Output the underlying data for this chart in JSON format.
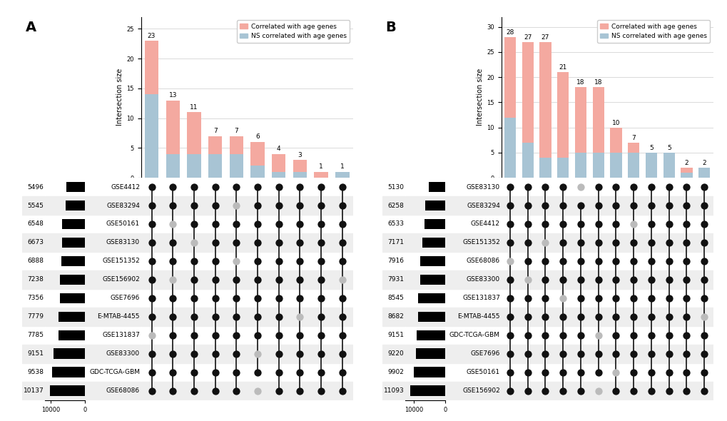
{
  "panel_A": {
    "datasets": [
      "GSE4412",
      "GSE83294",
      "GSE50161",
      "GSE83130",
      "GSE151352",
      "GSE156902",
      "GSE7696",
      "E-MTAB-4455",
      "GSE131837",
      "GSE83300",
      "GDC-TCGA-GBM",
      "GSE68086"
    ],
    "set_sizes": [
      5496,
      5545,
      6548,
      6673,
      6888,
      7238,
      7356,
      7779,
      7785,
      9151,
      9538,
      10137
    ],
    "intersection_totals": [
      23,
      13,
      11,
      7,
      7,
      6,
      4,
      3,
      1,
      1
    ],
    "intersection_sig": [
      9,
      9,
      7,
      3,
      3,
      4,
      3,
      2,
      1,
      0
    ],
    "intersection_ns": [
      14,
      4,
      4,
      4,
      4,
      2,
      1,
      1,
      0,
      1
    ],
    "dot_matrix": [
      [
        1,
        1,
        1,
        1,
        1,
        1,
        1,
        1,
        1,
        1
      ],
      [
        1,
        1,
        1,
        1,
        0,
        1,
        1,
        1,
        1,
        1
      ],
      [
        1,
        0,
        1,
        1,
        1,
        1,
        1,
        1,
        1,
        1
      ],
      [
        1,
        1,
        0,
        1,
        1,
        1,
        1,
        1,
        1,
        1
      ],
      [
        1,
        1,
        1,
        1,
        0,
        1,
        1,
        1,
        1,
        1
      ],
      [
        1,
        0,
        1,
        1,
        1,
        1,
        1,
        1,
        1,
        0
      ],
      [
        1,
        1,
        1,
        1,
        1,
        1,
        1,
        1,
        1,
        1
      ],
      [
        1,
        1,
        1,
        1,
        1,
        1,
        1,
        0,
        1,
        1
      ],
      [
        0,
        1,
        1,
        1,
        1,
        1,
        1,
        1,
        1,
        1
      ],
      [
        1,
        1,
        1,
        1,
        1,
        0,
        1,
        1,
        1,
        1
      ],
      [
        1,
        1,
        1,
        1,
        1,
        1,
        1,
        1,
        1,
        1
      ],
      [
        1,
        1,
        1,
        1,
        1,
        0,
        1,
        1,
        1,
        1
      ]
    ]
  },
  "panel_B": {
    "datasets": [
      "GSE83130",
      "GSE83294",
      "GSE4412",
      "GSE151352",
      "GSE68086",
      "GSE83300",
      "GSE131837",
      "E-MTAB-4455",
      "GDC-TCGA-GBM",
      "GSE7696",
      "GSE50161",
      "GSE156902"
    ],
    "set_sizes": [
      5130,
      6258,
      6533,
      7171,
      7916,
      7931,
      8545,
      8682,
      9151,
      9220,
      9902,
      11093
    ],
    "intersection_totals": [
      28,
      27,
      27,
      21,
      18,
      18,
      10,
      7,
      5,
      5,
      2,
      2
    ],
    "intersection_sig": [
      16,
      20,
      23,
      17,
      13,
      13,
      5,
      2,
      0,
      0,
      1,
      0
    ],
    "intersection_ns": [
      12,
      7,
      4,
      4,
      5,
      5,
      5,
      5,
      5,
      5,
      1,
      2
    ],
    "dot_matrix": [
      [
        1,
        1,
        1,
        1,
        0,
        1,
        1,
        1,
        1,
        1,
        1,
        1
      ],
      [
        1,
        1,
        1,
        1,
        1,
        1,
        1,
        1,
        1,
        1,
        1,
        1
      ],
      [
        1,
        1,
        1,
        1,
        1,
        1,
        1,
        0,
        1,
        1,
        1,
        1
      ],
      [
        1,
        1,
        0,
        1,
        1,
        1,
        1,
        1,
        1,
        1,
        1,
        1
      ],
      [
        0,
        1,
        1,
        1,
        1,
        1,
        1,
        1,
        1,
        1,
        1,
        1
      ],
      [
        1,
        0,
        1,
        1,
        1,
        1,
        1,
        1,
        1,
        1,
        1,
        1
      ],
      [
        1,
        1,
        1,
        0,
        1,
        1,
        1,
        1,
        1,
        1,
        1,
        1
      ],
      [
        1,
        1,
        1,
        1,
        1,
        1,
        1,
        1,
        1,
        1,
        1,
        0
      ],
      [
        1,
        1,
        1,
        1,
        1,
        0,
        1,
        1,
        1,
        1,
        1,
        1
      ],
      [
        1,
        1,
        1,
        1,
        1,
        1,
        1,
        1,
        1,
        1,
        1,
        1
      ],
      [
        1,
        1,
        1,
        1,
        1,
        1,
        0,
        1,
        1,
        1,
        1,
        1
      ],
      [
        1,
        1,
        1,
        1,
        1,
        0,
        1,
        1,
        1,
        1,
        1,
        1
      ]
    ]
  },
  "colors": {
    "sig": "#F4A9A0",
    "ns": "#A8C4D4",
    "dot_active": "#111111",
    "dot_inactive": "#bbbbbb",
    "row_shade": "#eeeeee",
    "line_color": "#111111"
  }
}
